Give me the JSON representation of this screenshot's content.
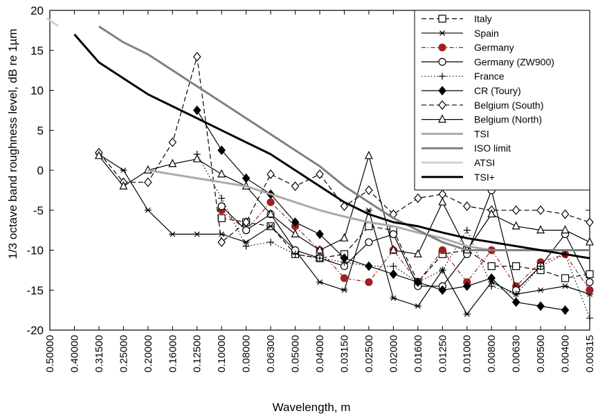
{
  "chart_data": {
    "type": "line",
    "xlabel": "Wavelength, m",
    "ylabel": "1/3 octave band roughness level, dB re 1µm",
    "ylim": [
      -20,
      20
    ],
    "yticks": [
      20,
      15,
      10,
      5,
      0,
      -5,
      -10,
      -15,
      -20
    ],
    "categories": [
      "0.50000",
      "0.40000",
      "0.31500",
      "0.25000",
      "0.20000",
      "0.16000",
      "0.12500",
      "0.10000",
      "0.08000",
      "0.06300",
      "0.05000",
      "0.04000",
      "0.03150",
      "0.02500",
      "0.02000",
      "0.01600",
      "0.01250",
      "0.01000",
      "0.00800",
      "0.00630",
      "0.00500",
      "0.00400",
      "0.00315"
    ],
    "grid": false,
    "legend_position": "top-right",
    "series": [
      {
        "name": "Italy",
        "style": "dashed",
        "color": "#000000",
        "marker": "square-open",
        "values": [
          null,
          null,
          null,
          null,
          null,
          null,
          null,
          -6,
          -6.5,
          -7,
          -10.5,
          -11,
          -10.5,
          -7,
          -7.5,
          -14,
          -10.5,
          -10,
          -12,
          -12,
          -12.5,
          -13.5,
          -13
        ]
      },
      {
        "name": "Spain",
        "style": "solid",
        "color": "#000000",
        "marker": "star",
        "values": [
          null,
          null,
          2,
          0,
          -5,
          -8,
          -8,
          -8,
          -9,
          -7,
          -10,
          -14,
          -15,
          -5,
          -16,
          -17,
          -12.5,
          -18,
          -14,
          -15.5,
          -15,
          -14.5,
          -15.5
        ]
      },
      {
        "name": "Germany",
        "style": "dashdot",
        "color": "#a02020",
        "marker": "circle-filled",
        "values": [
          null,
          null,
          null,
          null,
          null,
          null,
          null,
          -5,
          -7.5,
          -4,
          -7,
          -10,
          -13.5,
          -14,
          -10,
          -14,
          -10,
          -14,
          -10,
          -14.5,
          -11.5,
          -10.5,
          -15
        ]
      },
      {
        "name": "Germany (ZW900)",
        "style": "solid",
        "color": "#000000",
        "marker": "circle-open",
        "values": [
          null,
          null,
          null,
          null,
          null,
          null,
          null,
          -4.5,
          -7.5,
          -5.5,
          -10,
          -11,
          -12,
          -9,
          -8,
          -14.5,
          -14.5,
          -10.5,
          -2.5,
          -15,
          -12,
          -8,
          -14
        ]
      },
      {
        "name": "France",
        "style": "dotted",
        "color": "#000000",
        "marker": "plus",
        "values": [
          null,
          null,
          null,
          null,
          null,
          null,
          2,
          -3.5,
          -9.5,
          -9,
          -10.5,
          -11,
          -11.5,
          -12,
          -12,
          -14,
          -12.5,
          -7.5,
          -14.5,
          -15.5,
          -12,
          -10.5,
          -18.5
        ]
      },
      {
        "name": "CR (Toury)",
        "style": "solid",
        "color": "#000000",
        "marker": "diamond-filled",
        "values": [
          null,
          null,
          null,
          null,
          null,
          null,
          7.5,
          2.5,
          -1,
          -3,
          -6.5,
          -8,
          -11,
          -12,
          -13,
          -14,
          -15,
          -14.5,
          -13.5,
          -16.5,
          -17,
          -17.5,
          null
        ]
      },
      {
        "name": "Belgium (South)",
        "style": "dashed",
        "color": "#000000",
        "marker": "diamond-open",
        "values": [
          null,
          null,
          2.2,
          -1.5,
          -1.5,
          3.5,
          14.2,
          -9,
          -6.5,
          -0.5,
          -2,
          -0.5,
          -4.5,
          -2.5,
          -5.5,
          -3.5,
          -3,
          -4.5,
          -5,
          -5,
          -5,
          -5.5,
          -6.5
        ]
      },
      {
        "name": "Belgium (North)",
        "style": "solid",
        "color": "#000000",
        "marker": "triangle-open",
        "values": [
          null,
          null,
          1.8,
          -2,
          0,
          0.8,
          1.4,
          -0.5,
          -2,
          -5.5,
          -8,
          -10,
          -8.5,
          1.8,
          -10,
          -10.5,
          -4,
          -10,
          -5.5,
          -7,
          -7.5,
          -7.5,
          -9
        ]
      },
      {
        "name": "TSI",
        "style": "solid",
        "color": "#aaaaaa",
        "marker": "none",
        "values": [
          null,
          null,
          null,
          null,
          0,
          -0.5,
          -1,
          -1.5,
          -2,
          -3,
          -4,
          -5,
          -5.8,
          -6.5,
          -7,
          -7.8,
          -8.5,
          -9.5,
          -10,
          -10,
          -10,
          -10,
          -10
        ]
      },
      {
        "name": "ISO limit",
        "style": "solid",
        "color": "#808080",
        "marker": "none",
        "values": [
          null,
          null,
          18,
          16,
          14.5,
          12.5,
          10.5,
          8.5,
          6.5,
          4.5,
          2.5,
          0.5,
          -2,
          -4,
          -6,
          -7.5,
          -9,
          -10,
          -10,
          -10,
          -10,
          -10,
          -10
        ]
      },
      {
        "name": "ATSI",
        "style": "solid",
        "color": "#d0d0d0",
        "marker": "none",
        "values": [
          19,
          null,
          null,
          null,
          null,
          null,
          null,
          null,
          null,
          null,
          null,
          null,
          null,
          null,
          null,
          null,
          null,
          null,
          null,
          null,
          null,
          null,
          null
        ]
      },
      {
        "name": "TSI+",
        "style": "solid",
        "color": "#000000",
        "marker": "none",
        "values": [
          null,
          17,
          13.5,
          11.5,
          9.5,
          8,
          6.5,
          5,
          3.5,
          2,
          0,
          -2,
          -4,
          -5.5,
          -6.5,
          -7,
          -7.8,
          -8.5,
          -9,
          -9.5,
          -10,
          -10.5,
          -11
        ]
      }
    ]
  }
}
